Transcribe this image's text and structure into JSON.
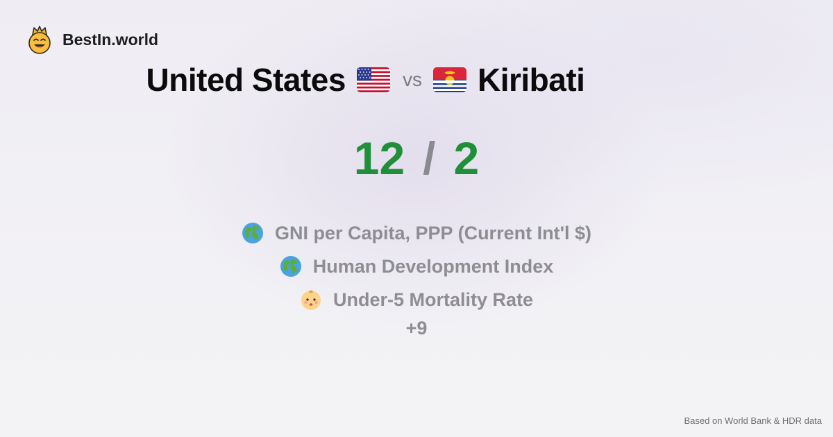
{
  "brand": {
    "name": "BestIn.world",
    "icon": "smiling-crown-face-icon"
  },
  "comparison": {
    "left_country": "United States",
    "left_flag": "us-flag-icon",
    "vs_label": "vs",
    "right_country": "Kiribati",
    "right_flag": "kiribati-flag-icon"
  },
  "score": {
    "left": "12",
    "separator": "/",
    "right": "2",
    "color": "#1f8f3a"
  },
  "metrics": [
    {
      "icon": "globe-icon",
      "label": "GNI per Capita, PPP (Current Int'l $)"
    },
    {
      "icon": "globe-icon",
      "label": "Human Development Index"
    },
    {
      "icon": "baby-face-icon",
      "label": "Under-5 Mortality Rate"
    }
  ],
  "more_label": "+9",
  "footer": {
    "source": "Based on World Bank & HDR data"
  }
}
